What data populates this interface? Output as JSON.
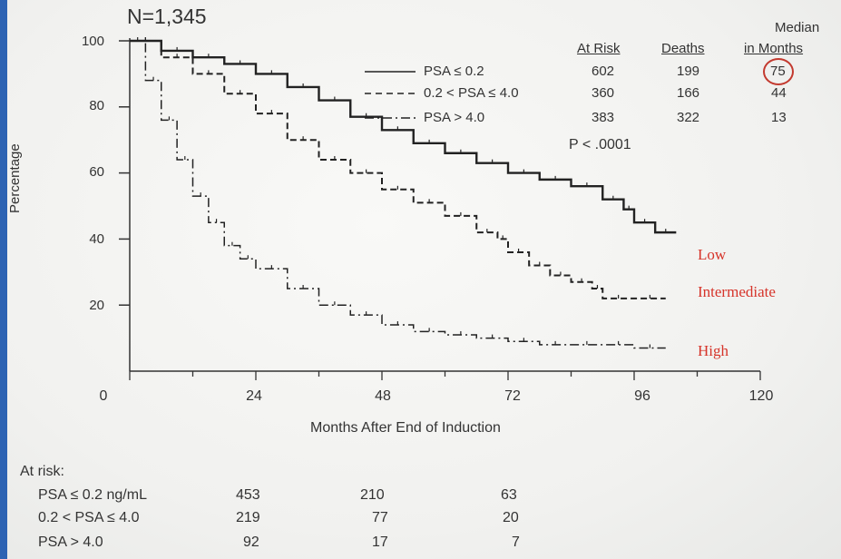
{
  "title": "N=1,345",
  "table": {
    "headers": {
      "at_risk": "At Risk",
      "deaths": "Deaths",
      "median_1": "Median",
      "median_2": "in Months"
    },
    "rows": [
      {
        "label": "PSA ≤ 0.2",
        "at_risk": "602",
        "deaths": "199",
        "median": "75"
      },
      {
        "label": "0.2 < PSA ≤ 4.0",
        "at_risk": "360",
        "deaths": "166",
        "median": "44"
      },
      {
        "label": "PSA > 4.0",
        "at_risk": "383",
        "deaths": "322",
        "median": "13"
      }
    ],
    "p_value": "P < .0001"
  },
  "curve_labels": {
    "low": "Low",
    "intermediate": "Intermediate",
    "high": "High"
  },
  "colors": {
    "curve_label": "#d6342a",
    "line": "#222222",
    "circle": "#c33a2f"
  },
  "at_risk_section": {
    "title": "At risk:",
    "rows": [
      {
        "label": "PSA ≤ 0.2 ng/mL",
        "values": [
          "453",
          "210",
          "63"
        ]
      },
      {
        "label": "0.2 < PSA ≤ 4.0",
        "values": [
          "219",
          "77",
          "20"
        ]
      },
      {
        "label": "PSA > 4.0",
        "values": [
          "92",
          "17",
          "7"
        ]
      }
    ]
  },
  "chart_data": {
    "type": "line",
    "xlabel": "Months After End of Induction",
    "ylabel": "Percentage",
    "xlim": [
      0,
      120
    ],
    "ylim": [
      0,
      100
    ],
    "xticks": [
      0,
      24,
      48,
      72,
      96,
      120
    ],
    "yticks": [
      20,
      40,
      60,
      80,
      100
    ],
    "series": [
      {
        "name": "PSA ≤ 0.2",
        "style": "solid",
        "curve_label": "Low",
        "x": [
          0,
          6,
          12,
          18,
          24,
          30,
          36,
          42,
          48,
          54,
          60,
          66,
          72,
          78,
          84,
          90,
          94,
          96,
          100,
          104
        ],
        "y": [
          100,
          97,
          95,
          93,
          90,
          86,
          82,
          77,
          73,
          69,
          66,
          63,
          60,
          58,
          56,
          52,
          49,
          45,
          42,
          42
        ]
      },
      {
        "name": "0.2 < PSA ≤ 4.0",
        "style": "dashed",
        "curve_label": "Intermediate",
        "x": [
          0,
          6,
          12,
          18,
          24,
          30,
          36,
          42,
          48,
          54,
          60,
          66,
          70,
          72,
          76,
          80,
          84,
          88,
          90,
          96,
          102
        ],
        "y": [
          100,
          95,
          90,
          84,
          78,
          70,
          64,
          60,
          55,
          51,
          47,
          42,
          40,
          36,
          32,
          29,
          27,
          25,
          22,
          22,
          22
        ]
      },
      {
        "name": "PSA > 4.0",
        "style": "dashdot",
        "curve_label": "High",
        "x": [
          0,
          3,
          6,
          9,
          12,
          15,
          18,
          21,
          24,
          30,
          36,
          42,
          48,
          54,
          60,
          66,
          72,
          78,
          84,
          90,
          96,
          102
        ],
        "y": [
          100,
          88,
          76,
          64,
          53,
          45,
          38,
          34,
          31,
          25,
          20,
          17,
          14,
          12,
          11,
          10,
          9,
          8,
          8,
          8,
          7,
          7
        ]
      }
    ]
  }
}
